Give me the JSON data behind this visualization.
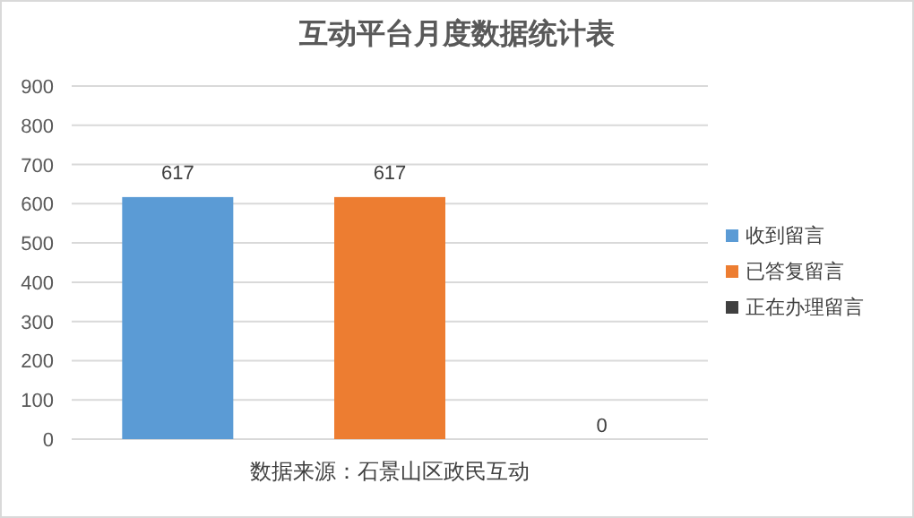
{
  "chart_data": {
    "type": "bar",
    "title": "互动平台月度数据统计表",
    "xlabel": "数据来源：石景山区政民互动",
    "categories": [
      null,
      null,
      null
    ],
    "series": [
      {
        "name": "收到留言",
        "color": "#5b9bd5",
        "values": [
          617,
          null,
          null
        ]
      },
      {
        "name": "已答复留言",
        "color": "#ed7d31",
        "values": [
          null,
          617,
          null
        ]
      },
      {
        "name": "正在办理留言",
        "color": "#404040",
        "values": [
          null,
          null,
          0
        ]
      }
    ],
    "ylim": [
      0,
      900
    ],
    "yticks": [
      0,
      100,
      200,
      300,
      400,
      500,
      600,
      700,
      800,
      900
    ],
    "grid": "y",
    "legend": "right",
    "data_labels": true
  }
}
